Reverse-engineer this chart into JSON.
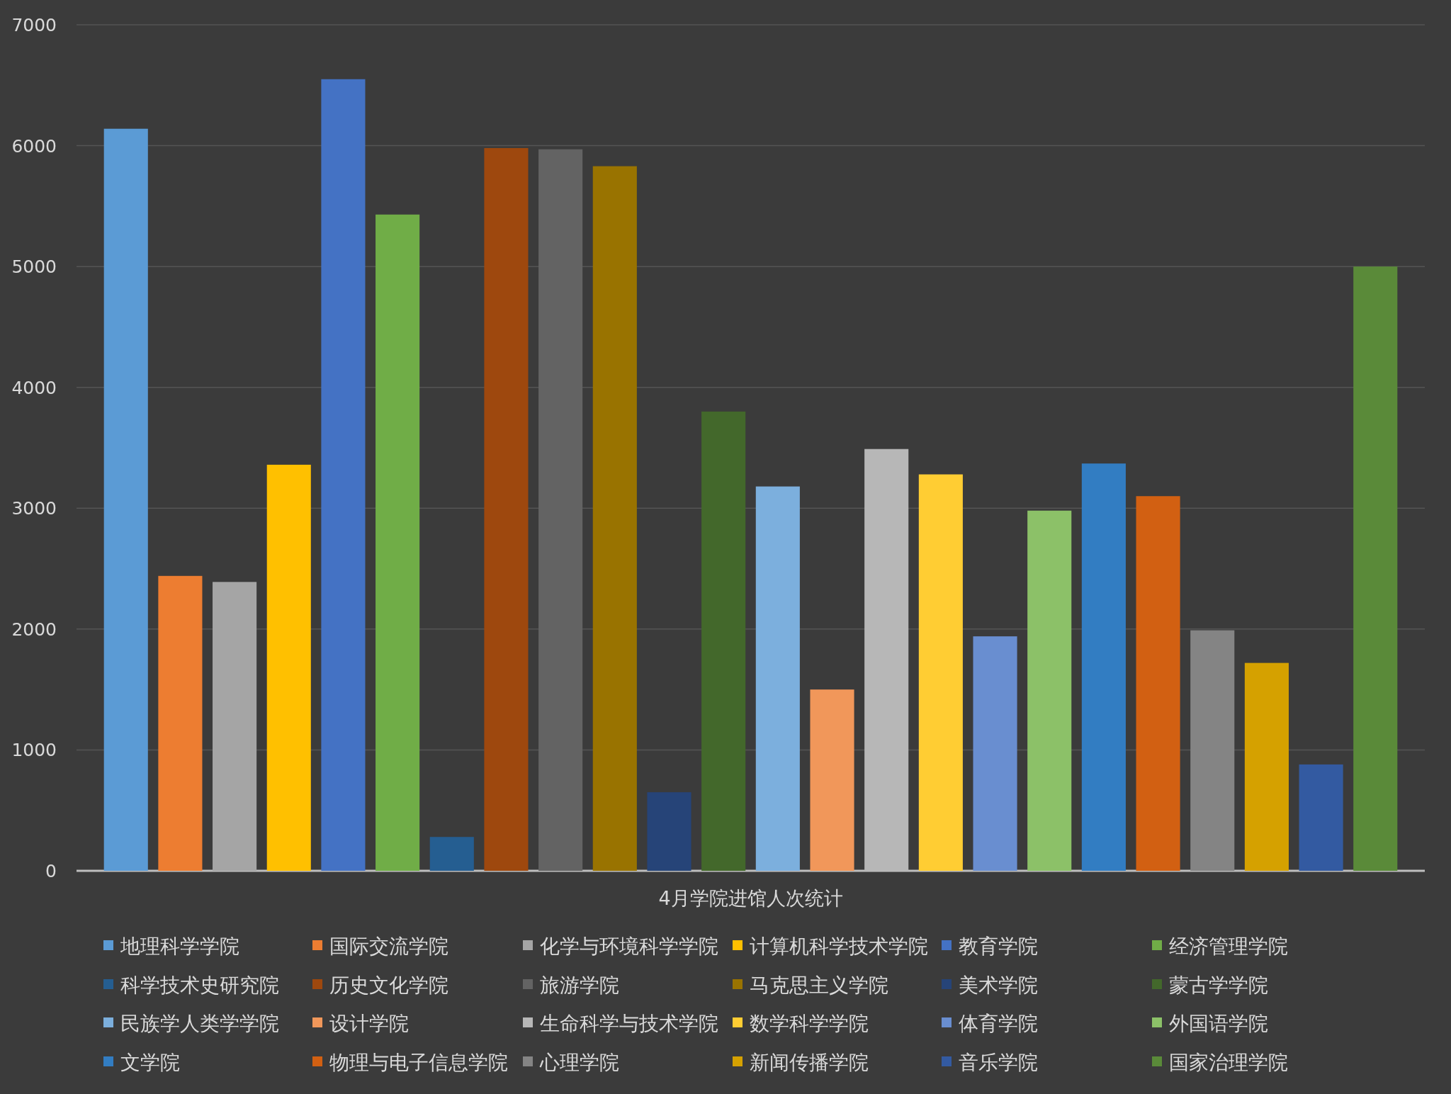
{
  "chart_data": {
    "type": "bar",
    "categories": [
      "4月学院进馆人次统计"
    ],
    "ylim": [
      0,
      7000
    ],
    "yticks": [
      0,
      1000,
      2000,
      3000,
      4000,
      5000,
      6000,
      7000
    ],
    "grid": "y",
    "legend": "bottom",
    "series": [
      {
        "name": "地理科学学院",
        "color": "#5b9bd5",
        "values": [
          6140
        ]
      },
      {
        "name": "国际交流学院",
        "color": "#ed7d31",
        "values": [
          2440
        ]
      },
      {
        "name": "化学与环境科学学院",
        "color": "#a5a5a5",
        "values": [
          2390
        ]
      },
      {
        "name": "计算机科学技术学院",
        "color": "#ffc000",
        "values": [
          3360
        ]
      },
      {
        "name": "教育学院",
        "color": "#4472c4",
        "values": [
          6550
        ]
      },
      {
        "name": "经济管理学院",
        "color": "#70ad47",
        "values": [
          5430
        ]
      },
      {
        "name": "科学技术史研究院",
        "color": "#255e91",
        "values": [
          280
        ]
      },
      {
        "name": "历史文化学院",
        "color": "#9e480e",
        "values": [
          5980
        ]
      },
      {
        "name": "旅游学院",
        "color": "#636363",
        "values": [
          5970
        ]
      },
      {
        "name": "马克思主义学院",
        "color": "#997300",
        "values": [
          5830
        ]
      },
      {
        "name": "美术学院",
        "color": "#264478",
        "values": [
          650
        ]
      },
      {
        "name": "蒙古学学院",
        "color": "#43682b",
        "values": [
          3800
        ]
      },
      {
        "name": "民族学人类学学院",
        "color": "#7cafdd",
        "values": [
          3180
        ]
      },
      {
        "name": "设计学院",
        "color": "#f1975a",
        "values": [
          1500
        ]
      },
      {
        "name": "生命科学与技术学院",
        "color": "#b7b7b7",
        "values": [
          3490
        ]
      },
      {
        "name": "数学科学学院",
        "color": "#ffcd33",
        "values": [
          3280
        ]
      },
      {
        "name": "体育学院",
        "color": "#698ed0",
        "values": [
          1940
        ]
      },
      {
        "name": "外国语学院",
        "color": "#8cc168",
        "values": [
          2980
        ]
      },
      {
        "name": "文学院",
        "color": "#327dc2",
        "values": [
          3370
        ]
      },
      {
        "name": "物理与电子信息学院",
        "color": "#d26012",
        "values": [
          3100
        ]
      },
      {
        "name": "心理学院",
        "color": "#848484",
        "values": [
          1990
        ]
      },
      {
        "name": "新闻传播学院",
        "color": "#d5a100",
        "values": [
          1720
        ]
      },
      {
        "name": "音乐学院",
        "color": "#335aa1",
        "values": [
          880
        ]
      },
      {
        "name": "国家治理学院",
        "color": "#5a8a39",
        "values": [
          5000
        ]
      }
    ]
  }
}
